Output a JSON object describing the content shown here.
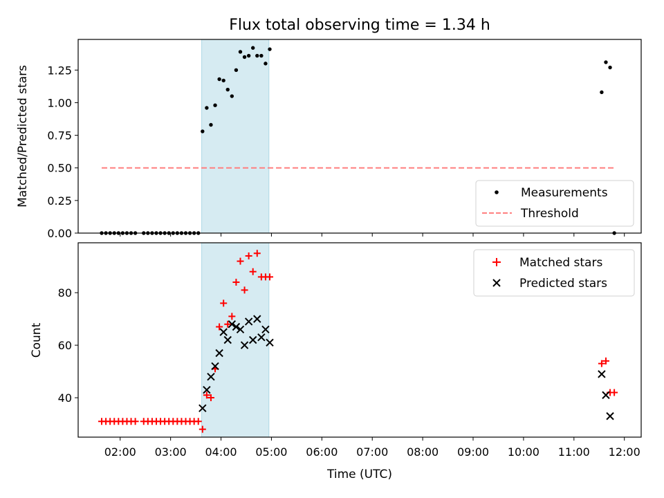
{
  "chart_data": [
    {
      "type": "scatter",
      "title": "Flux total observing time = 1.34 h",
      "xlabel": "",
      "ylabel": "Matched/Predicted stars",
      "ylim": [
        0,
        1.485
      ],
      "yticks": [
        "0.00",
        "0.25",
        "0.50",
        "0.75",
        "1.00",
        "1.25"
      ],
      "shaded_span": {
        "start": "03:37",
        "end": "04:57",
        "color": "#add8e6"
      },
      "legend": {
        "position": "lower-right",
        "entries": [
          "Measurements",
          "Threshold"
        ]
      },
      "series": [
        {
          "name": "Measurements",
          "color": "#000000",
          "marker": "dot",
          "x": [
            "01:38",
            "01:43",
            "01:48",
            "01:53",
            "01:58",
            "02:03",
            "02:08",
            "02:13",
            "02:18",
            "02:28",
            "02:33",
            "02:38",
            "02:43",
            "02:48",
            "02:53",
            "02:58",
            "03:03",
            "03:08",
            "03:13",
            "03:18",
            "03:23",
            "03:28",
            "03:33",
            "03:38",
            "03:43",
            "03:48",
            "03:53",
            "03:58",
            "04:03",
            "04:08",
            "04:13",
            "04:18",
            "04:23",
            "04:28",
            "04:33",
            "04:38",
            "04:43",
            "04:48",
            "04:53",
            "04:58",
            "11:33",
            "11:38",
            "11:43",
            "11:48"
          ],
          "y": [
            0,
            0,
            0,
            0,
            0,
            0,
            0,
            0,
            0,
            0,
            0,
            0,
            0,
            0,
            0,
            0,
            0,
            0,
            0,
            0,
            0,
            0,
            0,
            0.78,
            0.96,
            0.83,
            0.98,
            1.18,
            1.17,
            1.1,
            1.05,
            1.25,
            1.39,
            1.35,
            1.36,
            1.42,
            1.36,
            1.36,
            1.3,
            1.41,
            1.08,
            1.31,
            1.27,
            0
          ]
        },
        {
          "name": "Threshold",
          "color": "#ff7f7f",
          "style": "dashed",
          "x": [
            "01:38",
            "11:48"
          ],
          "y": [
            0.5,
            0.5
          ]
        }
      ]
    },
    {
      "type": "scatter",
      "title": "",
      "xlabel": "Time (UTC)",
      "ylabel": "Count",
      "ylim": [
        25,
        99
      ],
      "xlim": [
        "01:10",
        "12:20"
      ],
      "yticks": [
        "40",
        "60",
        "80"
      ],
      "xticks": [
        "02:00",
        "03:00",
        "04:00",
        "05:00",
        "06:00",
        "07:00",
        "08:00",
        "09:00",
        "10:00",
        "11:00",
        "12:00"
      ],
      "shaded_span": {
        "start": "03:37",
        "end": "04:57",
        "color": "#add8e6"
      },
      "legend": {
        "position": "top-right",
        "entries": [
          "Matched stars",
          "Predicted stars"
        ]
      },
      "series": [
        {
          "name": "Matched stars",
          "color": "#ff0000",
          "marker": "plus",
          "x": [
            "01:38",
            "01:43",
            "01:48",
            "01:53",
            "01:58",
            "02:03",
            "02:08",
            "02:13",
            "02:18",
            "02:28",
            "02:33",
            "02:38",
            "02:43",
            "02:48",
            "02:53",
            "02:58",
            "03:03",
            "03:08",
            "03:13",
            "03:18",
            "03:23",
            "03:28",
            "03:33",
            "03:38",
            "03:43",
            "03:48",
            "03:53",
            "03:58",
            "04:03",
            "04:08",
            "04:13",
            "04:18",
            "04:23",
            "04:28",
            "04:33",
            "04:38",
            "04:43",
            "04:48",
            "04:53",
            "04:58",
            "11:33",
            "11:38",
            "11:43",
            "11:48"
          ],
          "y": [
            31,
            31,
            31,
            31,
            31,
            31,
            31,
            31,
            31,
            31,
            31,
            31,
            31,
            31,
            31,
            31,
            31,
            31,
            31,
            31,
            31,
            31,
            31,
            28,
            41,
            40,
            51,
            67,
            76,
            68,
            71,
            84,
            92,
            81,
            94,
            88,
            95,
            86,
            86,
            86,
            53,
            54,
            42,
            42
          ]
        },
        {
          "name": "Predicted stars",
          "color": "#000000",
          "marker": "x",
          "x": [
            "03:38",
            "03:43",
            "03:48",
            "03:53",
            "03:58",
            "04:03",
            "04:08",
            "04:13",
            "04:18",
            "04:23",
            "04:28",
            "04:33",
            "04:38",
            "04:43",
            "04:48",
            "04:53",
            "04:58",
            "11:33",
            "11:38",
            "11:43"
          ],
          "y": [
            36,
            43,
            48,
            52,
            57,
            65,
            62,
            68,
            67,
            66,
            60,
            69,
            62,
            70,
            63,
            66,
            61,
            49,
            41,
            33
          ]
        }
      ]
    }
  ]
}
